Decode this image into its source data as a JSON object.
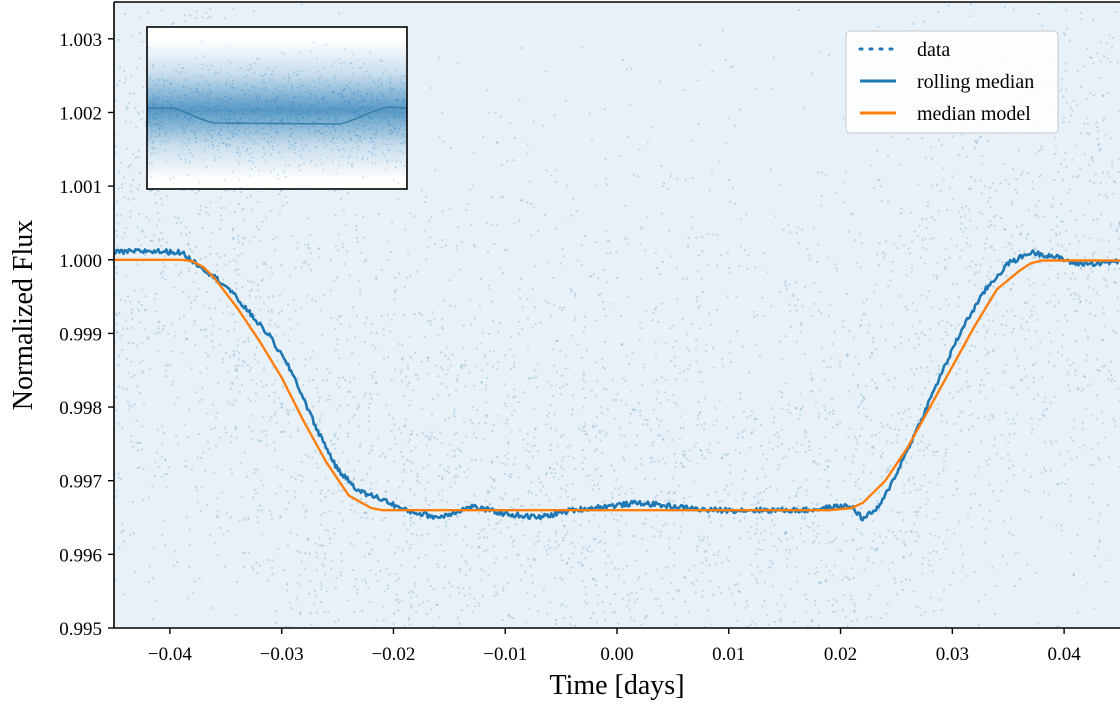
{
  "chart_data": {
    "type": "line",
    "xlabel": "Time [days]",
    "ylabel": "Normalized Flux",
    "xlim": [
      -0.045,
      0.045
    ],
    "ylim": [
      0.995,
      1.0035
    ],
    "x_ticks": [
      -0.04,
      -0.03,
      -0.02,
      -0.01,
      0.0,
      0.01,
      0.02,
      0.03,
      0.04
    ],
    "x_tick_labels": [
      "−0.04",
      "−0.03",
      "−0.02",
      "−0.01",
      "0.00",
      "0.01",
      "0.02",
      "0.03",
      "0.04"
    ],
    "y_ticks": [
      0.995,
      0.996,
      0.997,
      0.998,
      0.999,
      1.0,
      1.001,
      1.002,
      1.003
    ],
    "y_tick_labels": [
      "0.995",
      "0.996",
      "0.997",
      "0.998",
      "0.999",
      "1.000",
      "1.001",
      "1.002",
      "1.003"
    ],
    "grid": false,
    "legend_position": "top-right",
    "inset": {
      "position": "top-left",
      "content": "zoomed-out view of data with rolling median"
    },
    "series": [
      {
        "name": "data",
        "style": "dotted scatter",
        "color": "#1f77b4",
        "description": "dense noisy photometric points spanning the full plot area",
        "x_range": [
          -0.045,
          0.045
        ],
        "y_spread": [
          0.995,
          1.0035
        ]
      },
      {
        "name": "rolling median",
        "style": "line",
        "color": "#1f77b4",
        "x": [
          -0.045,
          -0.042,
          -0.039,
          -0.037,
          -0.035,
          -0.033,
          -0.031,
          -0.029,
          -0.027,
          -0.025,
          -0.023,
          -0.021,
          -0.019,
          -0.016,
          -0.013,
          -0.01,
          -0.007,
          -0.004,
          -0.001,
          0.002,
          0.005,
          0.008,
          0.011,
          0.014,
          0.017,
          0.02,
          0.021,
          0.022,
          0.0235,
          0.025,
          0.027,
          0.029,
          0.031,
          0.033,
          0.035,
          0.037,
          0.039,
          0.041,
          0.043,
          0.045
        ],
        "y": [
          1.0001,
          1.00012,
          1.0001,
          0.99988,
          0.99965,
          0.9993,
          0.99895,
          0.99845,
          0.99775,
          0.99715,
          0.99685,
          0.99675,
          0.9966,
          0.9965,
          0.99665,
          0.99655,
          0.9965,
          0.9966,
          0.99665,
          0.9967,
          0.99665,
          0.9966,
          0.9966,
          0.9966,
          0.9966,
          0.99665,
          0.99665,
          0.99648,
          0.99665,
          0.9971,
          0.99775,
          0.99845,
          0.9991,
          0.9996,
          0.99995,
          1.0001,
          1.00005,
          0.99995,
          0.99995,
          0.99998
        ]
      },
      {
        "name": "median model",
        "style": "line",
        "color": "#ff7f0e",
        "x": [
          -0.045,
          -0.039,
          -0.038,
          -0.037,
          -0.036,
          -0.034,
          -0.032,
          -0.03,
          -0.028,
          -0.026,
          -0.024,
          -0.022,
          -0.021,
          -0.019,
          0.0,
          0.019,
          0.021,
          0.022,
          0.024,
          0.026,
          0.028,
          0.03,
          0.032,
          0.034,
          0.036,
          0.037,
          0.038,
          0.045
        ],
        "y": [
          1.0,
          1.0,
          0.99998,
          0.9999,
          0.99975,
          0.99935,
          0.9989,
          0.9984,
          0.9978,
          0.99725,
          0.9968,
          0.99663,
          0.9966,
          0.9966,
          0.9966,
          0.9966,
          0.99663,
          0.9967,
          0.997,
          0.99745,
          0.998,
          0.99855,
          0.9991,
          0.9996,
          0.99985,
          0.99995,
          0.99999,
          0.99999
        ]
      }
    ]
  }
}
